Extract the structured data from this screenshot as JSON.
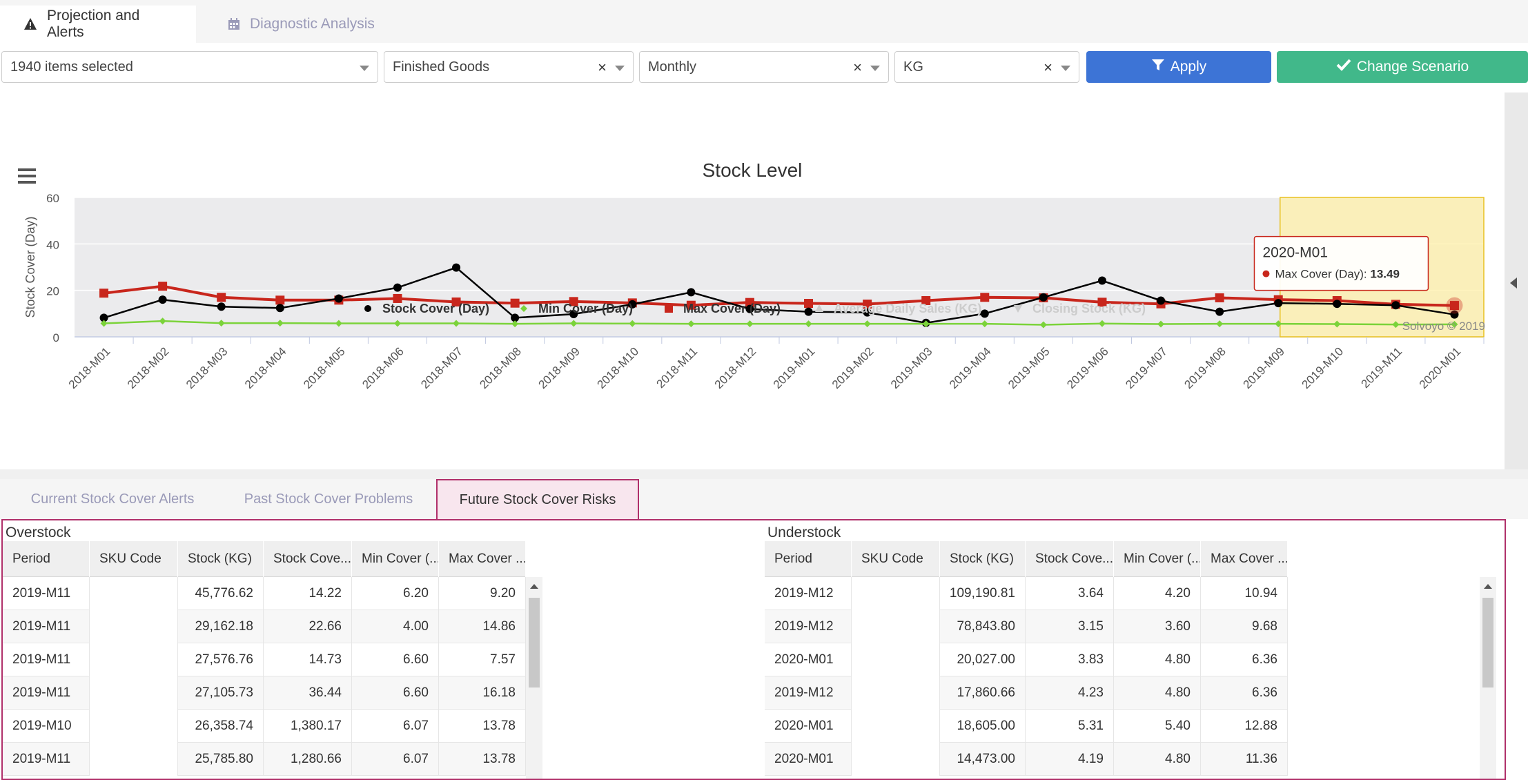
{
  "tabs": {
    "projection": "Projection and Alerts",
    "diagnostic": "Diagnostic Analysis"
  },
  "filters": {
    "items": "1940 items selected",
    "category": "Finished Goods",
    "period": "Monthly",
    "unit": "KG",
    "clear_symbol": "×",
    "apply_label": "Apply",
    "scenario_label": "Change Scenario"
  },
  "colors": {
    "stock_cover": "#000000",
    "min_cover": "#7bd33a",
    "max_cover": "#c8261c",
    "apply": "#3d74d6",
    "scenario": "#41b88a",
    "highlight": "#fff0a8"
  },
  "chart_data": {
    "type": "line",
    "title": "Stock Level",
    "ylabel": "Stock Cover (Day)",
    "ylim": [
      0,
      60
    ],
    "yticks": [
      0,
      20,
      40,
      60
    ],
    "categories": [
      "2018-M01",
      "2018-M02",
      "2018-M03",
      "2018-M04",
      "2018-M05",
      "2018-M06",
      "2018-M07",
      "2018-M08",
      "2018-M09",
      "2018-M10",
      "2018-M11",
      "2018-M12",
      "2019-M01",
      "2019-M02",
      "2019-M03",
      "2019-M04",
      "2019-M05",
      "2019-M06",
      "2019-M07",
      "2019-M08",
      "2019-M09",
      "2019-M10",
      "2019-M11",
      "2020-M01"
    ],
    "series": [
      {
        "name": "Stock Cover (Day)",
        "marker": "circle",
        "values": [
          8.2,
          16,
          13,
          12.4,
          16.5,
          21.2,
          29.8,
          8.2,
          9.8,
          14,
          19.2,
          12,
          10.8,
          10.5,
          6,
          10,
          17,
          24.2,
          15.6,
          10.8,
          14.5,
          14.2,
          13.6,
          9.6
        ]
      },
      {
        "name": "Min Cover (Day)",
        "marker": "diamond",
        "values": [
          5.8,
          6.8,
          5.9,
          5.9,
          5.8,
          5.8,
          5.8,
          5.6,
          5.8,
          5.7,
          5.6,
          5.6,
          5.6,
          5.6,
          5.6,
          5.6,
          5.2,
          5.7,
          5.5,
          5.6,
          5.6,
          5.5,
          5.3,
          5.4
        ]
      },
      {
        "name": "Max Cover (Day)",
        "marker": "square",
        "values": [
          18.8,
          21.8,
          17,
          15.8,
          15.8,
          16.5,
          15,
          14.5,
          15.2,
          14.6,
          13.6,
          14.8,
          14.4,
          14.1,
          15.6,
          17,
          16.8,
          14.9,
          14.2,
          16.8,
          16,
          15.6,
          14,
          13.49
        ]
      }
    ],
    "hidden_series": [
      "Average Daily Sales (KG)",
      "Closing Stock (KG)"
    ],
    "legend_position": "bottom-center",
    "highlight_band": {
      "from": "2019-M10",
      "to": "2020-M01"
    },
    "tooltip": {
      "category": "2020-M01",
      "series": "Max Cover (Day)",
      "label": "Max Cover (Day):",
      "value": "13.49"
    },
    "credit": "Solvoyo © 2019",
    "grid": true
  },
  "subtabs": {
    "current": "Current Stock Cover Alerts",
    "past": "Past Stock Cover Problems",
    "future": "Future Stock Cover Risks"
  },
  "overstock": {
    "title": "Overstock",
    "columns": [
      "Period",
      "SKU Code",
      "Stock (KG)",
      "Stock Cove...",
      "Min Cover (...",
      "Max Cover ..."
    ],
    "rows": [
      [
        "2019-M11",
        "",
        "45,776.62",
        "14.22",
        "6.20",
        "9.20"
      ],
      [
        "2019-M11",
        "",
        "29,162.18",
        "22.66",
        "4.00",
        "14.86"
      ],
      [
        "2019-M11",
        "",
        "27,576.76",
        "14.73",
        "6.60",
        "7.57"
      ],
      [
        "2019-M11",
        "",
        "27,105.73",
        "36.44",
        "6.60",
        "16.18"
      ],
      [
        "2019-M10",
        "",
        "26,358.74",
        "1,380.17",
        "6.07",
        "13.78"
      ],
      [
        "2019-M11",
        "",
        "25,785.80",
        "1,280.66",
        "6.07",
        "13.78"
      ]
    ]
  },
  "understock": {
    "title": "Understock",
    "columns": [
      "Period",
      "SKU Code",
      "Stock (KG)",
      "Stock Cove...",
      "Min Cover (...",
      "Max Cover ..."
    ],
    "rows": [
      [
        "2019-M12",
        "",
        "109,190.81",
        "3.64",
        "4.20",
        "10.94"
      ],
      [
        "2019-M12",
        "",
        "78,843.80",
        "3.15",
        "3.60",
        "9.68"
      ],
      [
        "2020-M01",
        "",
        "20,027.00",
        "3.83",
        "4.80",
        "6.36"
      ],
      [
        "2019-M12",
        "",
        "17,860.66",
        "4.23",
        "4.80",
        "6.36"
      ],
      [
        "2020-M01",
        "",
        "18,605.00",
        "5.31",
        "5.40",
        "12.88"
      ],
      [
        "2020-M01",
        "",
        "14,473.00",
        "4.19",
        "4.80",
        "11.36"
      ]
    ]
  }
}
